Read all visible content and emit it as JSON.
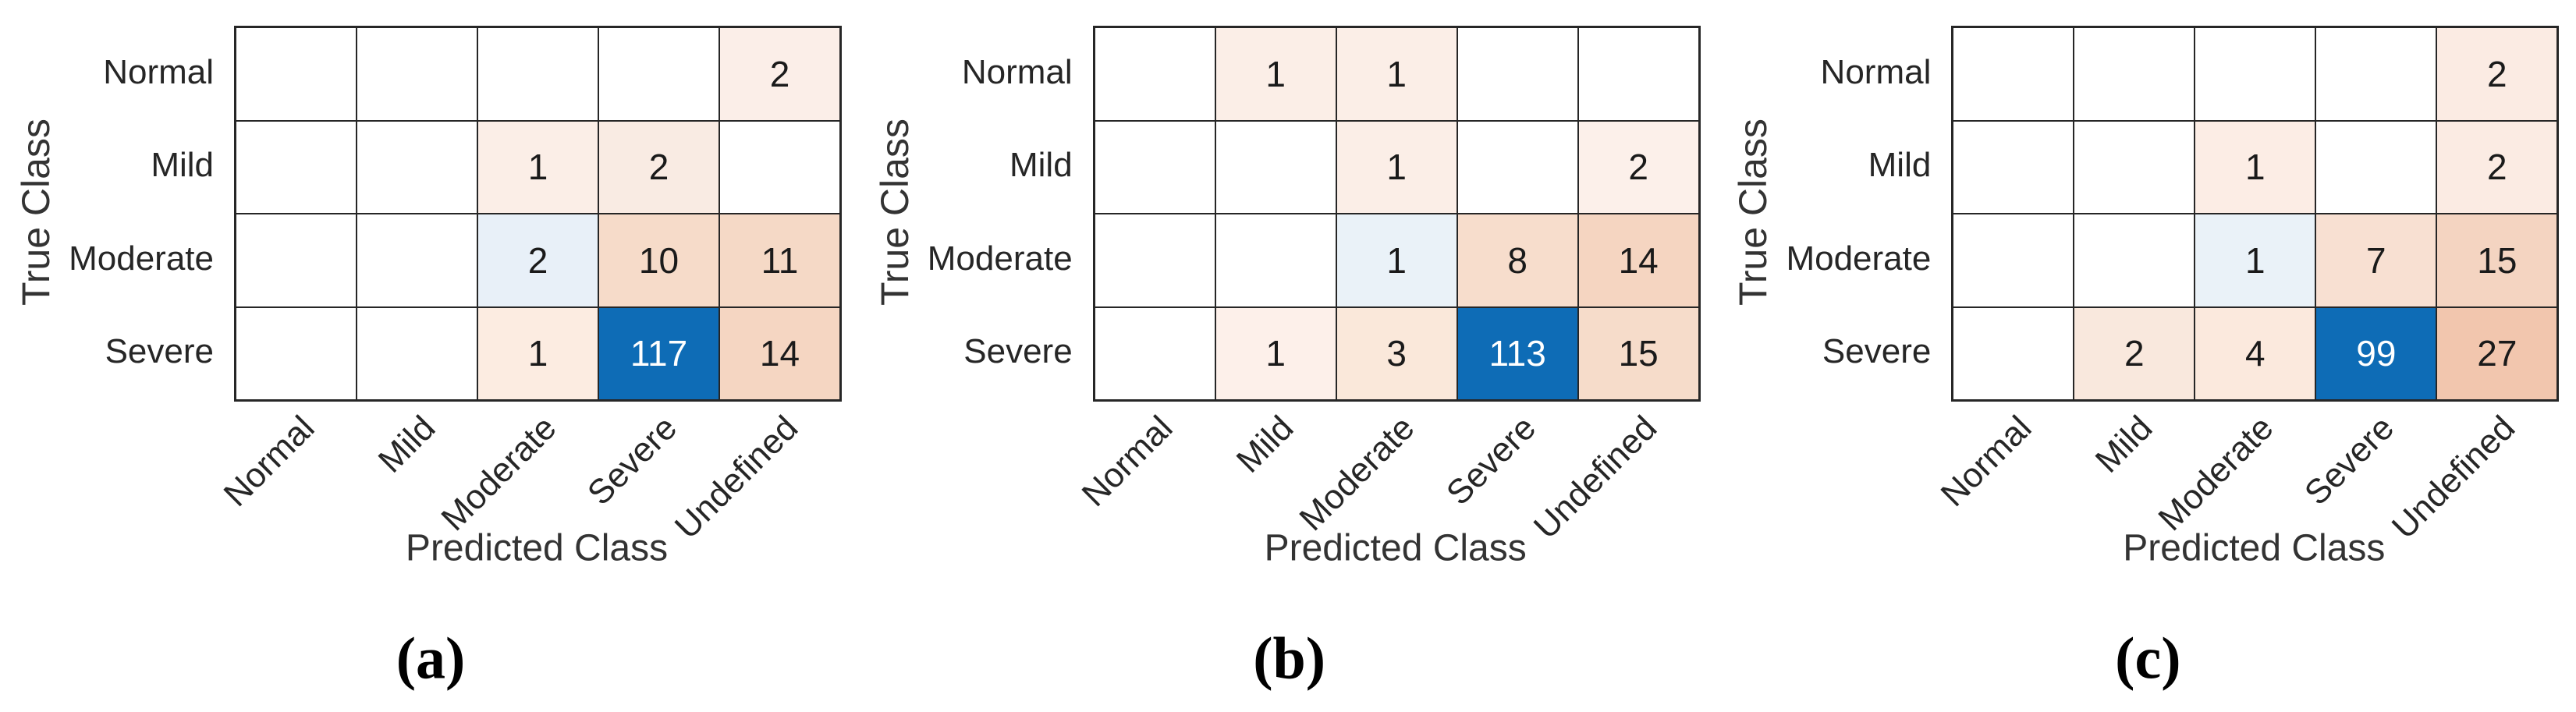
{
  "figure": {
    "background": "#ffffff",
    "colors": {
      "grid_line": "#262626",
      "diagonal_high_blue": "#0e6cb6",
      "diagonal_low_blue": "#eaf2f8",
      "offdiagonal_orange_max": "#f0c5ab",
      "cell_text": "#1a1a1a",
      "cell_text_on_blue": "#ffffff",
      "tick_label_text": "#262626",
      "axis_title_text": "#333333",
      "caption_text": "#000000"
    }
  },
  "chart_data": [
    {
      "type": "heatmap",
      "caption": "(a)",
      "xlabel": "Predicted Class",
      "ylabel": "True Class",
      "x_categories": [
        "Normal",
        "Mild",
        "Moderate",
        "Severe",
        "Undefined"
      ],
      "y_categories": [
        "Normal",
        "Mild",
        "Moderate",
        "Severe"
      ],
      "values": [
        [
          null,
          null,
          null,
          null,
          2
        ],
        [
          null,
          null,
          1,
          2,
          null
        ],
        [
          null,
          null,
          2,
          10,
          11
        ],
        [
          null,
          null,
          1,
          117,
          14
        ]
      ],
      "cell_colors": [
        [
          "",
          "",
          "",
          "",
          "#fbeee8"
        ],
        [
          "",
          "",
          "#fbeee7",
          "#f9ebe3",
          ""
        ],
        [
          "",
          "",
          "#e8f0f8",
          "#f6dbc9",
          "#f5d9c6"
        ],
        [
          "",
          "",
          "#fcece1",
          "#0e6cb6",
          "#f5d6c2"
        ]
      ]
    },
    {
      "type": "heatmap",
      "caption": "(b)",
      "xlabel": "Predicted Class",
      "ylabel": "True Class",
      "x_categories": [
        "Normal",
        "Mild",
        "Moderate",
        "Severe",
        "Undefined"
      ],
      "y_categories": [
        "Normal",
        "Mild",
        "Moderate",
        "Severe"
      ],
      "values": [
        [
          null,
          1,
          1,
          null,
          null
        ],
        [
          null,
          null,
          1,
          null,
          2
        ],
        [
          null,
          null,
          1,
          8,
          14
        ],
        [
          null,
          1,
          3,
          113,
          15
        ]
      ],
      "cell_colors": [
        [
          "",
          "#fbeee7",
          "#fbeee7",
          "",
          ""
        ],
        [
          "",
          "",
          "#fbeee7",
          "",
          "#fcf0ea"
        ],
        [
          "",
          "",
          "#eaf2f8",
          "#f7ddcc",
          "#f5d5c1"
        ],
        [
          "",
          "#fdf0ea",
          "#fae8da",
          "#0e6cb6",
          "#f6dcca"
        ]
      ]
    },
    {
      "type": "heatmap",
      "caption": "(c)",
      "xlabel": "Predicted Class",
      "ylabel": "True Class",
      "x_categories": [
        "Normal",
        "Mild",
        "Moderate",
        "Severe",
        "Undefined"
      ],
      "y_categories": [
        "Normal",
        "Mild",
        "Moderate",
        "Severe"
      ],
      "values": [
        [
          null,
          null,
          null,
          null,
          2
        ],
        [
          null,
          null,
          1,
          null,
          2
        ],
        [
          null,
          null,
          1,
          7,
          15
        ],
        [
          null,
          2,
          4,
          99,
          27
        ]
      ],
      "cell_colors": [
        [
          "",
          "",
          "",
          "",
          "#fbebe3"
        ],
        [
          "",
          "",
          "#fcede5",
          "",
          "#fbebe3"
        ],
        [
          "",
          "",
          "#eaf2f8",
          "#f8e0d2",
          "#f4d4c1"
        ],
        [
          "",
          "#f9e8dd",
          "#fbe9dd",
          "#0e6cb6",
          "#f2c6ae"
        ]
      ]
    }
  ]
}
